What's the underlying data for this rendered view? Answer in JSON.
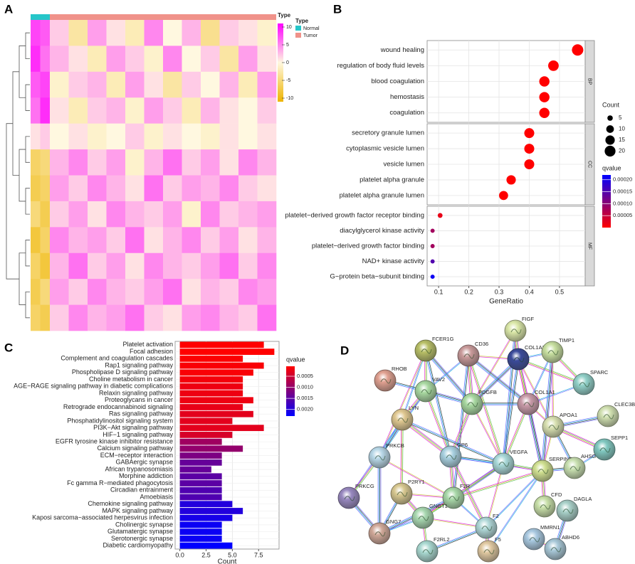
{
  "chart_data": [
    {
      "type": "heatmap",
      "panel_label": "A",
      "legend_title": "Type",
      "groups": [
        {
          "name": "Normal",
          "color": "#26c6c9",
          "values": [
            [
              8,
              7
            ],
            [
              9,
              6
            ],
            [
              7,
              8
            ],
            [
              6,
              9
            ],
            [
              1,
              2
            ],
            [
              -6,
              -5
            ],
            [
              -7,
              -6
            ],
            [
              -5,
              -7
            ],
            [
              -8,
              -6
            ],
            [
              -6,
              -8
            ],
            [
              -7,
              -5
            ],
            [
              -6,
              -7
            ]
          ]
        },
        {
          "name": "Tumor",
          "color": "#f0928a",
          "values": [
            [
              2,
              -3,
              4,
              1,
              -2,
              5,
              0,
              3,
              -4,
              2,
              1,
              -1
            ],
            [
              3,
              1,
              -2,
              4,
              2,
              -1,
              5,
              0,
              2,
              -3,
              4,
              1
            ],
            [
              -1,
              2,
              3,
              -2,
              4,
              1,
              -3,
              2,
              0,
              3,
              -2,
              4
            ],
            [
              1,
              -2,
              2,
              3,
              -1,
              4,
              2,
              -2,
              3,
              1,
              0,
              2
            ],
            [
              0,
              1,
              -1,
              0,
              2,
              -1,
              1,
              0,
              -1,
              1,
              0,
              1
            ],
            [
              3,
              5,
              2,
              4,
              -1,
              3,
              6,
              2,
              4,
              1,
              5,
              3
            ],
            [
              4,
              2,
              5,
              3,
              1,
              6,
              2,
              4,
              3,
              5,
              2,
              1
            ],
            [
              2,
              4,
              1,
              5,
              3,
              2,
              4,
              -1,
              5,
              2,
              3,
              4
            ],
            [
              5,
              3,
              4,
              2,
              6,
              1,
              3,
              5,
              2,
              4,
              1,
              3
            ],
            [
              3,
              6,
              2,
              4,
              1,
              5,
              3,
              2,
              4,
              6,
              2,
              5
            ],
            [
              4,
              2,
              5,
              3,
              2,
              4,
              6,
              1,
              3,
              2,
              5,
              4
            ],
            [
              2,
              5,
              3,
              4,
              6,
              2,
              1,
              4,
              5,
              3,
              2,
              6
            ]
          ]
        }
      ],
      "clim": [
        -11,
        11
      ],
      "colors": [
        "#eeb400",
        "#fff8e0",
        "#ff00ff"
      ],
      "colorbar_ticks": [
        10,
        5,
        0,
        -5,
        -10
      ]
    },
    {
      "type": "dot",
      "panel_label": "B",
      "x_label": "GeneRatio",
      "xlim": [
        0.062,
        0.585
      ],
      "xticks": [
        0.1,
        0.2,
        0.3,
        0.4,
        0.5
      ],
      "facets": [
        {
          "name": "BP",
          "categories": [
            "wound healing",
            "regulation of body fluid levels",
            "blood coagulation",
            "hemostasis",
            "coagulation"
          ],
          "values": [
            0.56,
            0.48,
            0.45,
            0.45,
            0.45
          ],
          "sizes": [
            22,
            19,
            18,
            18,
            18
          ],
          "qvalues": [
            1e-09,
            1e-09,
            1e-09,
            1e-09,
            1e-09
          ]
        },
        {
          "name": "CC",
          "categories": [
            "secretory granule lumen",
            "cytoplasmic vesicle lumen",
            "vesicle lumen",
            "platelet alpha granule",
            "platelet alpha granule lumen"
          ],
          "values": [
            0.4,
            0.4,
            0.4,
            0.34,
            0.315
          ],
          "sizes": [
            17,
            17,
            17,
            15,
            14
          ],
          "qvalues": [
            1e-08,
            1e-08,
            1e-08,
            1e-08,
            1e-08
          ]
        },
        {
          "name": "MF",
          "categories": [
            "platelet−derived growth factor receptor binding",
            "diacylglycerol kinase activity",
            "platelet−derived growth factor binding",
            "NAD+ kinase activity",
            "G−protein beta−subunit binding"
          ],
          "values": [
            0.105,
            0.08,
            0.08,
            0.08,
            0.08
          ],
          "sizes": [
            4,
            3,
            3,
            3,
            3
          ],
          "qvalues": [
            2e-05,
            8e-05,
            8e-05,
            0.00015,
            0.00021
          ]
        }
      ],
      "size_legend": {
        "title": "Count",
        "ticks": [
          5,
          10,
          15,
          20
        ]
      },
      "color_legend": {
        "title": "qvalue",
        "lim": [
          0,
          0.00022
        ],
        "colors": [
          "#ff0000",
          "#0000ff"
        ],
        "ticks": [
          {
            "value": 0.0002,
            "label": "0.00020"
          },
          {
            "value": 0.00015,
            "label": "0.00015"
          },
          {
            "value": 0.0001,
            "label": "0.00010"
          },
          {
            "value": 5e-05,
            "label": "0.00005"
          }
        ]
      }
    },
    {
      "type": "hbar",
      "panel_label": "C",
      "x_label": "Count",
      "categories": [
        "Platelet activation",
        "Focal adhesion",
        "Complement and coagulation cascades",
        "Rap1 signaling pathway",
        "Phospholipase D signaling pathway",
        "Choline metabolism in cancer",
        "AGE−RAGE signaling pathway in diabetic complications",
        "Relaxin signaling pathway",
        "Proteoglycans in cancer",
        "Retrograde endocannabinoid signaling",
        "Ras signaling pathway",
        "Phosphatidylinositol signaling system",
        "PI3K−Akt signaling pathway",
        "HIF−1 signaling pathway",
        "EGFR tyrosine kinase inhibitor resistance",
        "Calcium signaling pathway",
        "ECM−receptor interaction",
        "GABAergic synapse",
        "African trypanosomiasis",
        "Morphine addiction",
        "Fc gamma R−mediated phagocytosis",
        "Circadian entrainment",
        "Amoebiasis",
        "Chemokine signaling pathway",
        "MAPK signaling pathway",
        "Kaposi sarcoma−associated herpesvirus infection",
        "Cholinergic synapse",
        "Glutamatergic synapse",
        "Serotonergic synapse",
        "Diabetic cardiomyopathy"
      ],
      "values": [
        8,
        9,
        6,
        8,
        7,
        6,
        6,
        6,
        7,
        6,
        7,
        5,
        8,
        5,
        4,
        6,
        4,
        4,
        3,
        4,
        4,
        4,
        4,
        5,
        6,
        5,
        4,
        4,
        4,
        5
      ],
      "qvalues": [
        5e-05,
        5e-05,
        8e-05,
        0.0001,
        0.0001,
        0.00015,
        0.0002,
        0.0002,
        0.0002,
        0.00025,
        0.0003,
        0.0003,
        0.0003,
        0.0004,
        0.0009,
        0.001,
        0.0012,
        0.0014,
        0.0014,
        0.0015,
        0.0015,
        0.0016,
        0.0016,
        0.002,
        0.002,
        0.0021,
        0.0022,
        0.0022,
        0.0022,
        0.0023
      ],
      "xlim": [
        -0.45,
        9.45
      ],
      "xticks": [
        {
          "value": 0,
          "label": "0.0"
        },
        {
          "value": 2.5,
          "label": "2.5"
        },
        {
          "value": 5,
          "label": "5.0"
        },
        {
          "value": 7.5,
          "label": "7.5"
        }
      ],
      "color_legend": {
        "title": "qvalue",
        "lim": [
          5e-05,
          0.0023
        ],
        "colors": [
          "#ff0000",
          "#0000ff"
        ],
        "ticks": [
          {
            "value": 0.0005,
            "label": "0.0005"
          },
          {
            "value": 0.001,
            "label": "0.0010"
          },
          {
            "value": 0.0015,
            "label": "0.0015"
          },
          {
            "value": 0.002,
            "label": "0.0020"
          }
        ]
      }
    }
  ],
  "network": {
    "panel_label": "D",
    "nodes": [
      {
        "label": "FIGF",
        "color": "#dbe8a8"
      },
      {
        "label": "FCER1G",
        "color": "#b8bf66"
      },
      {
        "label": "CD36",
        "color": "#c99a9a"
      },
      {
        "label": "COL1A2",
        "color": "#3a4a9a"
      },
      {
        "label": "TIMP1",
        "color": "#c8e0a0"
      },
      {
        "label": "RHOB",
        "color": "#e0a090"
      },
      {
        "label": "VAV2",
        "color": "#a8d8a0"
      },
      {
        "label": "SPARC",
        "color": "#90d0c8"
      },
      {
        "label": "PDGFB",
        "color": "#a8d8a0"
      },
      {
        "label": "COL1A1",
        "color": "#c89aa8"
      },
      {
        "label": "LYN",
        "color": "#e0c890"
      },
      {
        "label": "CLEC3B",
        "color": "#d0e0b0"
      },
      {
        "label": "APOA1",
        "color": "#d8e0b0"
      },
      {
        "label": "SEPP1",
        "color": "#80c8c0"
      },
      {
        "label": "PRKCB",
        "color": "#b8d8e8"
      },
      {
        "label": "GP6",
        "color": "#a8d0e0"
      },
      {
        "label": "VEGFA",
        "color": "#a8d8d8"
      },
      {
        "label": "SERPINE1",
        "color": "#d0e090"
      },
      {
        "label": "AHSG",
        "color": "#c8e0b0"
      },
      {
        "label": "PRKCG",
        "color": "#9888c0"
      },
      {
        "label": "P2RY1",
        "color": "#d8c890"
      },
      {
        "label": "F2R",
        "color": "#a8d8a8"
      },
      {
        "label": "CFD",
        "color": "#c8e0a8"
      },
      {
        "label": "DAGLA",
        "color": "#a8d0c8"
      },
      {
        "label": "F2",
        "color": "#b0d8d8"
      },
      {
        "label": "GNG7",
        "color": "#d0a898"
      },
      {
        "label": "GNGT1",
        "color": "#a8d8b0"
      },
      {
        "label": "MMRN1",
        "color": "#a8c8e0"
      },
      {
        "label": "ABHD6",
        "color": "#a8c8d8"
      },
      {
        "label": "F5",
        "color": "#e0c8a0"
      },
      {
        "label": "F2RL2",
        "color": "#a8d8d0"
      }
    ]
  }
}
